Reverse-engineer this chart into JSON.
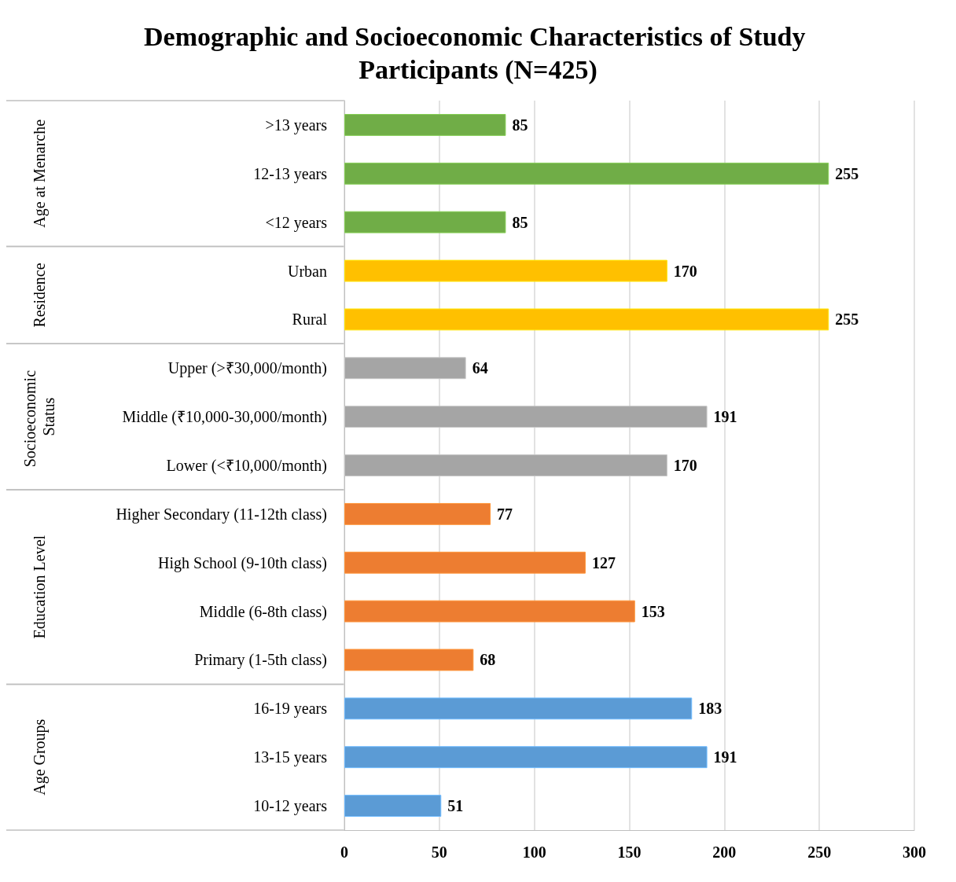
{
  "chart_data": {
    "type": "bar",
    "orientation": "horizontal",
    "stacked": true,
    "title": "Demographic and Socioeconomic Characteristics of Study Participants (N=425)",
    "categories": [
      ">13 years",
      "12-13 years",
      "<12 years",
      "Urban",
      "Rural",
      "Upper (>₹30,000/month)",
      "Middle (₹10,000-30,000/month)",
      "Lower (<₹10,000/month)",
      "Higher Secondary (11-12th class)",
      "High School (9-10th class)",
      "Middle (6-8th class)",
      "Primary (1-5th class)",
      "16-19 years",
      "13-15 years",
      "10-12 years"
    ],
    "series": [
      {
        "color": "#70ad47",
        "values": [
          85,
          255,
          85,
          null,
          null,
          null,
          null,
          null,
          null,
          null,
          null,
          null,
          null,
          null,
          null
        ]
      },
      {
        "color": "#ffc000",
        "values": [
          null,
          null,
          null,
          170,
          255,
          null,
          null,
          null,
          null,
          null,
          null,
          null,
          null,
          null,
          null
        ]
      },
      {
        "color": "#a5a5a5",
        "values": [
          null,
          null,
          null,
          null,
          null,
          64,
          191,
          170,
          null,
          null,
          null,
          null,
          null,
          null,
          null
        ]
      },
      {
        "color": "#ed7d31",
        "values": [
          null,
          null,
          null,
          null,
          null,
          null,
          null,
          null,
          77,
          127,
          153,
          68,
          null,
          null,
          null
        ]
      },
      {
        "color": "#5b9bd5",
        "values": [
          null,
          null,
          null,
          null,
          null,
          null,
          null,
          null,
          null,
          null,
          null,
          null,
          183,
          191,
          51
        ]
      }
    ],
    "annotations": [
      "Age at Menarche",
      "Residence",
      "Socioeconomic Status",
      "Education Level",
      "Age Groups"
    ],
    "xlim": [
      0,
      300
    ],
    "xticks": [
      0,
      50,
      100,
      150,
      200,
      250,
      300
    ],
    "grid": "x",
    "data_labels": true
  }
}
